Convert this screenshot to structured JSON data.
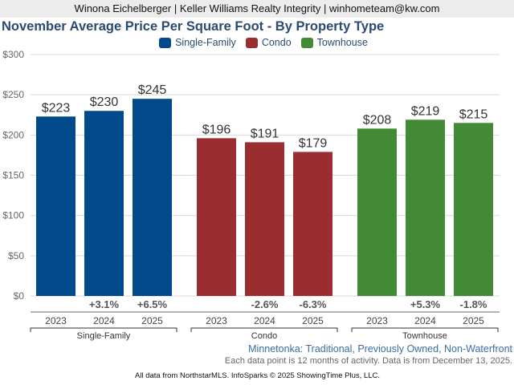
{
  "header": {
    "banner": "Winona Eichelberger | Keller Williams Realty Integrity | winhometeam@kw.com"
  },
  "chart_data": {
    "type": "bar",
    "title": "November Average Price Per Square Foot - By Property Type",
    "xlabel": "",
    "ylabel": "",
    "ylim": [
      0,
      300
    ],
    "yticks": [
      0,
      50,
      100,
      150,
      200,
      250,
      300
    ],
    "ytick_labels": [
      "$0",
      "$50",
      "$100",
      "$150",
      "$200",
      "$250",
      "$300"
    ],
    "grid": true,
    "legend_position": "top-center",
    "legend": [
      "Single-Family",
      "Condo",
      "Townhouse"
    ],
    "groups": [
      {
        "name": "Single-Family",
        "color": "#004a8c",
        "categories": [
          "2023",
          "2024",
          "2025"
        ],
        "values": [
          223,
          230,
          245
        ],
        "value_labels": [
          "$223",
          "$230",
          "$245"
        ],
        "changes": [
          "",
          "+3.1%",
          "+6.5%"
        ]
      },
      {
        "name": "Condo",
        "color": "#9b2d30",
        "categories": [
          "2023",
          "2024",
          "2025"
        ],
        "values": [
          196,
          191,
          179
        ],
        "value_labels": [
          "$196",
          "$191",
          "$179"
        ],
        "changes": [
          "",
          "-2.6%",
          "-6.3%"
        ]
      },
      {
        "name": "Townhouse",
        "color": "#438a36",
        "categories": [
          "2023",
          "2024",
          "2025"
        ],
        "values": [
          208,
          219,
          215
        ],
        "value_labels": [
          "$208",
          "$219",
          "$215"
        ],
        "changes": [
          "",
          "+5.3%",
          "-1.8%"
        ]
      }
    ],
    "subtitle": "Minnetonka: Traditional, Previously Owned, Non-Waterfront",
    "note": "Each data point is 12 months of activity. Data is from December 13, 2025."
  },
  "footer": {
    "text": "All data from NorthstarMLS. InfoSparks © 2025 ShowingTime Plus, LLC."
  }
}
